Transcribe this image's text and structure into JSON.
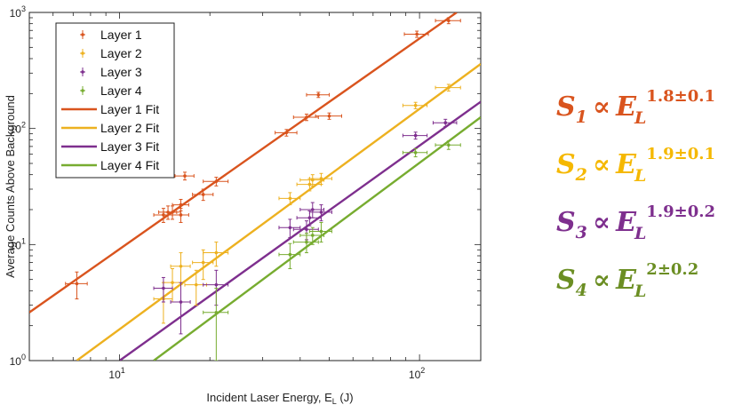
{
  "chart_data": {
    "type": "scatter",
    "title": "",
    "xlabel": "Incident Laser Energy, E",
    "xlabel_sub": "L",
    "xlabel_unit": " (J)",
    "ylabel": "Average Counts Above Background",
    "xscale": "log",
    "yscale": "log",
    "xlim": [
      5,
      160
    ],
    "ylim": [
      1,
      1000
    ],
    "grid": false,
    "legend_position": "top-left",
    "x_ticks": [
      {
        "value": 10,
        "base": "10",
        "exp": "1"
      },
      {
        "value": 100,
        "base": "10",
        "exp": "2"
      }
    ],
    "y_ticks": [
      {
        "value": 1,
        "base": "10",
        "exp": "0"
      },
      {
        "value": 10,
        "base": "10",
        "exp": "1"
      },
      {
        "value": 100,
        "base": "10",
        "exp": "2"
      },
      {
        "value": 1000,
        "base": "10",
        "exp": "3"
      }
    ],
    "series": [
      {
        "name": "Layer 1",
        "color": "#d9541e",
        "points": [
          {
            "x": 7.2,
            "y": 4.6,
            "xerr": 0.6,
            "yerr": 1.2
          },
          {
            "x": 14,
            "y": 18,
            "xerr": 1,
            "yerr": 2.5
          },
          {
            "x": 14.5,
            "y": 19,
            "xerr": 1,
            "yerr": 2.5
          },
          {
            "x": 15,
            "y": 19,
            "xerr": 1,
            "yerr": 2.5
          },
          {
            "x": 16,
            "y": 18,
            "xerr": 1,
            "yerr": 2.5
          },
          {
            "x": 16,
            "y": 22,
            "xerr": 1,
            "yerr": 2.5
          },
          {
            "x": 16.5,
            "y": 39,
            "xerr": 1.2,
            "yerr": 3
          },
          {
            "x": 19,
            "y": 27,
            "xerr": 1.5,
            "yerr": 3
          },
          {
            "x": 21,
            "y": 35,
            "xerr": 2,
            "yerr": 3
          },
          {
            "x": 36,
            "y": 92,
            "xerr": 3,
            "yerr": 6
          },
          {
            "x": 42,
            "y": 125,
            "xerr": 4,
            "yerr": 8
          },
          {
            "x": 46,
            "y": 195,
            "xerr": 4,
            "yerr": 10
          },
          {
            "x": 50,
            "y": 128,
            "xerr": 5,
            "yerr": 8
          },
          {
            "x": 98,
            "y": 650,
            "xerr": 9,
            "yerr": 40
          },
          {
            "x": 125,
            "y": 850,
            "xerr": 12,
            "yerr": 50
          }
        ]
      },
      {
        "name": "Layer 2",
        "color": "#edb120",
        "points": [
          {
            "x": 14,
            "y": 3.4,
            "xerr": 1,
            "yerr": 1.3
          },
          {
            "x": 15,
            "y": 4.7,
            "xerr": 1,
            "yerr": 1.5
          },
          {
            "x": 16,
            "y": 6.5,
            "xerr": 1.2,
            "yerr": 2
          },
          {
            "x": 18,
            "y": 4.5,
            "xerr": 1.5,
            "yerr": 1.5
          },
          {
            "x": 19,
            "y": 7,
            "xerr": 1.5,
            "yerr": 2
          },
          {
            "x": 21,
            "y": 8.5,
            "xerr": 2,
            "yerr": 2
          },
          {
            "x": 37,
            "y": 25,
            "xerr": 3,
            "yerr": 3
          },
          {
            "x": 43,
            "y": 33,
            "xerr": 4,
            "yerr": 4
          },
          {
            "x": 44,
            "y": 36,
            "xerr": 4,
            "yerr": 4
          },
          {
            "x": 47,
            "y": 37,
            "xerr": 4,
            "yerr": 4
          },
          {
            "x": 97,
            "y": 158,
            "xerr": 9,
            "yerr": 10
          },
          {
            "x": 125,
            "y": 225,
            "xerr": 12,
            "yerr": 15
          }
        ]
      },
      {
        "name": "Layer 3",
        "color": "#7e2f8e",
        "points": [
          {
            "x": 14,
            "y": 4.2,
            "xerr": 1,
            "yerr": 1
          },
          {
            "x": 16,
            "y": 3.2,
            "xerr": 1.2,
            "yerr": 1.5
          },
          {
            "x": 21,
            "y": 4.5,
            "xerr": 2,
            "yerr": 1.5
          },
          {
            "x": 37,
            "y": 14,
            "xerr": 3,
            "yerr": 2.5
          },
          {
            "x": 42,
            "y": 13.5,
            "xerr": 4,
            "yerr": 2.5
          },
          {
            "x": 43,
            "y": 17,
            "xerr": 4,
            "yerr": 2.5
          },
          {
            "x": 44,
            "y": 20,
            "xerr": 4,
            "yerr": 3
          },
          {
            "x": 47,
            "y": 19,
            "xerr": 4,
            "yerr": 3
          },
          {
            "x": 97,
            "y": 87,
            "xerr": 9,
            "yerr": 6
          },
          {
            "x": 122,
            "y": 112,
            "xerr": 11,
            "yerr": 8
          }
        ]
      },
      {
        "name": "Layer 4",
        "color": "#77ac30",
        "points": [
          {
            "x": 21,
            "y": 2.6,
            "xerr": 2,
            "yerr": 1.6
          },
          {
            "x": 37,
            "y": 8.2,
            "xerr": 3,
            "yerr": 2
          },
          {
            "x": 42,
            "y": 10.5,
            "xerr": 4,
            "yerr": 2
          },
          {
            "x": 44,
            "y": 12,
            "xerr": 4,
            "yerr": 2
          },
          {
            "x": 47,
            "y": 13,
            "xerr": 4,
            "yerr": 2.5
          },
          {
            "x": 97,
            "y": 62,
            "xerr": 9,
            "yerr": 5
          },
          {
            "x": 125,
            "y": 72,
            "xerr": 12,
            "yerr": 6
          }
        ]
      }
    ],
    "fits": [
      {
        "name": "Layer 1 Fit",
        "color": "#d9541e",
        "x_start": 5,
        "y_start": 2.6,
        "x_end": 133,
        "y_end": 1000
      },
      {
        "name": "Layer 2 Fit",
        "color": "#edb120",
        "x_start": 7.2,
        "y_start": 1,
        "x_end": 160,
        "y_end": 360
      },
      {
        "name": "Layer 3 Fit",
        "color": "#7e2f8e",
        "x_start": 10,
        "y_start": 1,
        "x_end": 160,
        "y_end": 170
      },
      {
        "name": "Layer 4 Fit",
        "color": "#77ac30",
        "x_start": 13,
        "y_start": 1,
        "x_end": 160,
        "y_end": 125
      }
    ]
  },
  "equations": [
    {
      "s": "S",
      "sub": "1",
      "prop": "∝",
      "e": "E",
      "esub": "L",
      "exp": "1.8±0.1",
      "color": "#d9541e"
    },
    {
      "s": "S",
      "sub": "2",
      "prop": "∝",
      "e": "E",
      "esub": "L",
      "exp": "1.9±0.1",
      "color": "#f5b800"
    },
    {
      "s": "S",
      "sub": "3",
      "prop": "∝",
      "e": "E",
      "esub": "L",
      "exp": "1.9±0.2",
      "color": "#7e2f8e"
    },
    {
      "s": "S",
      "sub": "4",
      "prop": "∝",
      "e": "E",
      "esub": "L",
      "exp": "2±0.2",
      "color": "#6b8e23"
    }
  ]
}
